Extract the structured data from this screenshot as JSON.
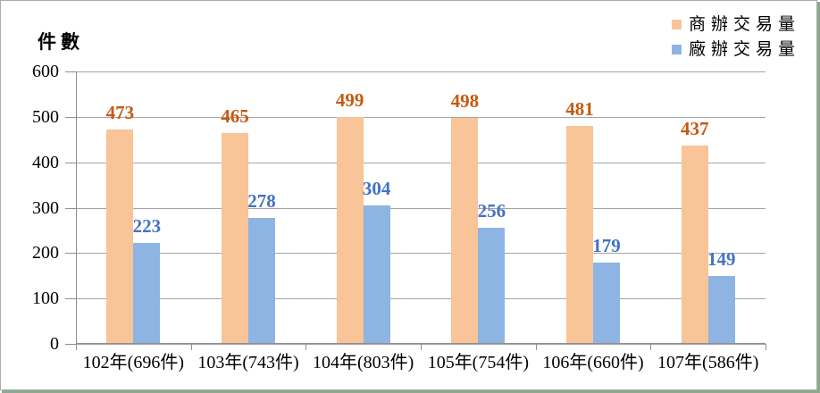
{
  "y_axis_title": "件數",
  "legend": {
    "items": [
      {
        "label": "商辦交易量",
        "color": "#F8C498"
      },
      {
        "label": "廠辦交易量",
        "color": "#8DB4E3"
      }
    ]
  },
  "chart_data": {
    "type": "bar",
    "categories": [
      "102年(696件)",
      "103年(743件)",
      "104年(803件)",
      "105年(754件)",
      "106年(660件)",
      "107年(586件)"
    ],
    "series": [
      {
        "name": "商辦交易量",
        "color": "#F8C498",
        "label_color": "#C5590F",
        "values": [
          473,
          465,
          499,
          498,
          481,
          437
        ]
      },
      {
        "name": "廠辦交易量",
        "color": "#8DB4E3",
        "label_color": "#4472C4",
        "values": [
          223,
          278,
          304,
          256,
          179,
          149
        ]
      }
    ],
    "title": "",
    "xlabel": "",
    "ylabel": "件數",
    "ylim": [
      0,
      600
    ],
    "yticks": [
      0,
      100,
      200,
      300,
      400,
      500,
      600
    ],
    "grid": true,
    "grid_color": "#A4A4A4",
    "legend_position": "top-right"
  }
}
